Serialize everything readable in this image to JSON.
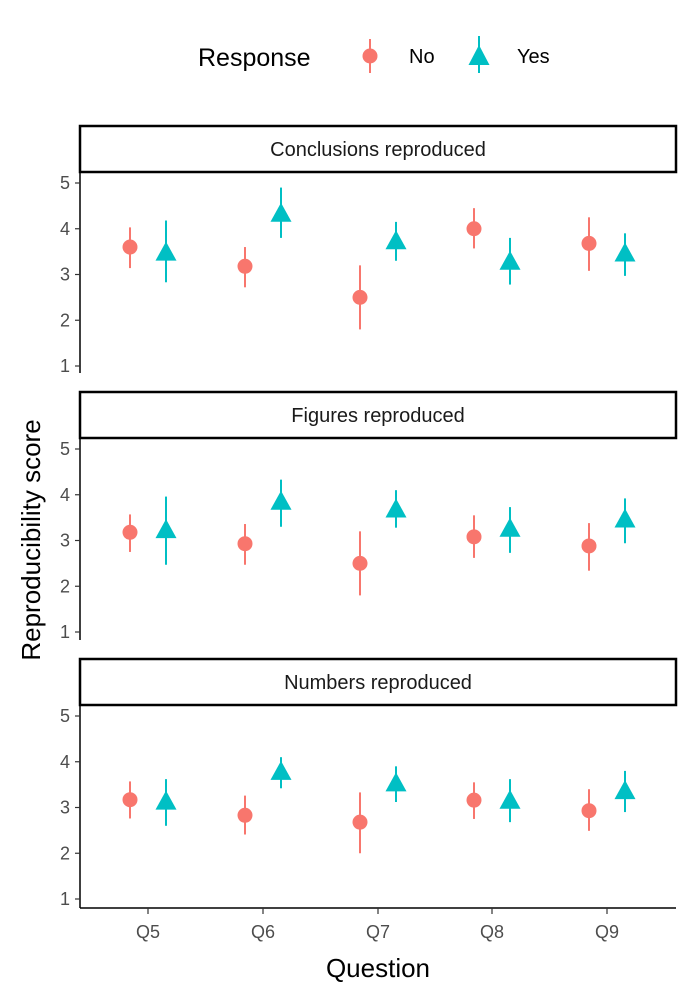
{
  "legend": {
    "title": "Response",
    "entries": [
      {
        "label": "No",
        "shape": "circle",
        "color": "#F8766D"
      },
      {
        "label": "Yes",
        "shape": "triangle",
        "color": "#00BFC4"
      }
    ]
  },
  "axes": {
    "xlabel": "Question",
    "ylabel": "Reproducibility score"
  },
  "chart_data": {
    "type": "scatter",
    "subtype": "pointrange",
    "categories": [
      "Q5",
      "Q6",
      "Q7",
      "Q8",
      "Q9"
    ],
    "ylim": [
      1,
      5
    ],
    "yticks": [
      1,
      2,
      3,
      4,
      5
    ],
    "grid": false,
    "legend_position": "top",
    "facets": [
      {
        "title": "Conclusions reproduced",
        "series": [
          {
            "name": "No",
            "y": [
              3.6,
              3.18,
              2.5,
              4.0,
              3.68
            ],
            "lower": [
              3.14,
              2.72,
              1.8,
              3.57,
              3.08
            ],
            "upper": [
              4.03,
              3.6,
              3.2,
              4.45,
              4.25
            ]
          },
          {
            "name": "Yes",
            "y": [
              3.5,
              4.35,
              3.75,
              3.3,
              3.48
            ],
            "lower": [
              2.83,
              3.8,
              3.3,
              2.78,
              2.97
            ],
            "upper": [
              4.18,
              4.9,
              4.15,
              3.8,
              3.9
            ]
          }
        ]
      },
      {
        "title": "Figures reproduced",
        "series": [
          {
            "name": "No",
            "y": [
              3.18,
              2.93,
              2.5,
              3.08,
              2.88
            ],
            "lower": [
              2.75,
              2.47,
              1.8,
              2.62,
              2.34
            ],
            "upper": [
              3.57,
              3.36,
              3.2,
              3.55,
              3.38
            ]
          },
          {
            "name": "Yes",
            "y": [
              3.25,
              3.87,
              3.7,
              3.28,
              3.48
            ],
            "lower": [
              2.47,
              3.3,
              3.28,
              2.73,
              2.94
            ],
            "upper": [
              3.96,
              4.33,
              4.1,
              3.73,
              3.92
            ]
          }
        ]
      },
      {
        "title": "Numbers reproduced",
        "series": [
          {
            "name": "No",
            "y": [
              3.17,
              2.83,
              2.68,
              3.16,
              2.93
            ],
            "lower": [
              2.76,
              2.41,
              2.0,
              2.75,
              2.49
            ],
            "upper": [
              3.57,
              3.26,
              3.33,
              3.55,
              3.4
            ]
          },
          {
            "name": "Yes",
            "y": [
              3.15,
              3.8,
              3.55,
              3.17,
              3.38
            ],
            "lower": [
              2.6,
              3.42,
              3.12,
              2.68,
              2.9
            ],
            "upper": [
              3.62,
              4.1,
              3.9,
              3.62,
              3.8
            ]
          }
        ]
      }
    ]
  }
}
